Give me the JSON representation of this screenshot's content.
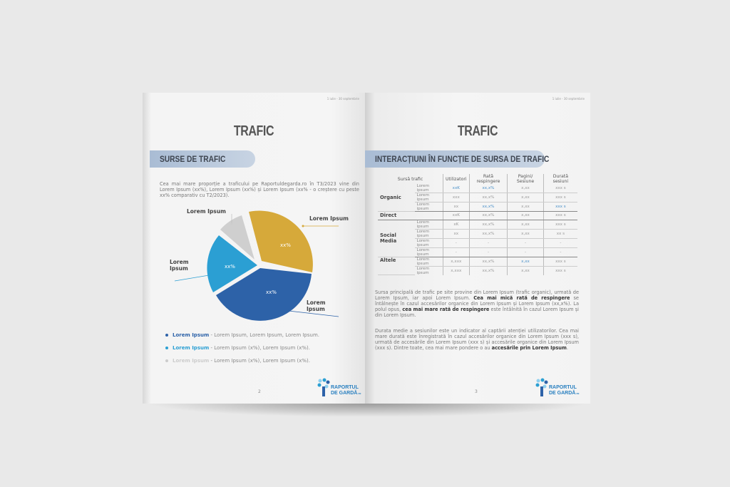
{
  "left_page": {
    "date_range": "1 iulie - 30 septembrie",
    "title": "TRAFIC",
    "section": "SURSE DE TRAFIC",
    "intro": "Cea mai mare proporție a traficului pe Raportuldegarda.ro în T3/2023 vine din Lorem Ipsum (xx%), Lorem Ipsum (xx%) și Lorem Ipsum (xx% - o creștere cu peste xx% comparativ cu T2/2023).",
    "pie": {
      "labels": [
        "Lorem Ipsum",
        "Lorem Ipsum",
        "Lorem Ipsum",
        "Lorem Ipsum"
      ],
      "slice_text": [
        "xx%",
        "xx%",
        "xx%"
      ],
      "colors": {
        "gold": "#d6a93a",
        "dark_blue": "#2d62a8",
        "light_blue": "#2b9fd3",
        "grey": "#cfcfcf"
      }
    },
    "bullets": [
      {
        "bold": "Lorem Ipsum",
        "text": " - Lorem Ipsum, Lorem Ipsum, Lorem Ipsum.",
        "color": "#2d62a8"
      },
      {
        "bold": "Lorem Ipsum",
        "text": " - Lorem Ipsum (x%), Lorem Ipsum (x%).",
        "color": "#2b9fd3"
      },
      {
        "bold": "Lorem Ipsum",
        "text": " - Lorem Ipsum (x%), Lorem Ipsum (x%).",
        "color": "#cccccc"
      }
    ],
    "page_number": "2",
    "logo": {
      "line1": "RAPORTUL",
      "line2": "DE GARDĂ",
      "suffix": ".ro"
    }
  },
  "right_page": {
    "date_range": "1 iulie - 30 septembrie",
    "title": "TRAFIC",
    "section": "INTERACȚIUNI ÎN FUNCȚIE DE SURSA DE TRAFIC",
    "table": {
      "headers": [
        "Sursă trafic",
        "Utilizatori",
        "Rată respingere",
        "Pagini/ Sesiune",
        "Durată sesiuni"
      ],
      "groups": {
        "organic": "Organic",
        "direct": "Direct",
        "social": "Social Media",
        "altele": "Altele"
      },
      "rows": [
        [
          "Lorem ipsum",
          "xxK",
          "xx,x%",
          "x,xx",
          "xxx s"
        ],
        [
          "Lorem ipsum",
          "xxx",
          "xx,x%",
          "x,xx",
          "xxx s"
        ],
        [
          "Lorem ipsum",
          "xx",
          "xx,x%",
          "x,xx",
          "xxx s"
        ],
        [
          "",
          "xxK",
          "xx,x%",
          "x,xx",
          "xxx s"
        ],
        [
          "Lorem ipsum",
          "xK",
          "xx,x%",
          "x,xx",
          "xxx s"
        ],
        [
          "Lorem ipsum",
          "xx",
          "xx,x%",
          "x,xx",
          "xx s"
        ],
        [
          "Lorem ipsum",
          "-",
          "-",
          "-",
          "-"
        ],
        [
          "Lorem ipsum",
          "-",
          "-",
          "-",
          "-"
        ],
        [
          "Lorem ipsum",
          "x,xxx",
          "xx,x%",
          "x,xx",
          "xxx s"
        ],
        [
          "Lorem ipsum",
          "x,xxx",
          "xx,x%",
          "x,xx",
          "xxx s"
        ]
      ]
    },
    "p1": {
      "a": "Sursa principală de trafic pe site provine din Lorem Ipsum (trafic organic), urmată de Lorem Ipsum, iar apoi Lorem Ipsum. ",
      "b1": "Cea mai mică rată de respingere",
      "c": " se întâlnește în cazul accesărilor organice din Lorem Ipsum și Lorem Ipsum (xx,x%). La polul opus, ",
      "b2": "cea mai mare rată de respingere",
      "d": " este întâlnită în cazul Lorem Ipsum și din Lorem Ipsum."
    },
    "p2": {
      "a": "Durata medie a sesiunilor este un indicator al captării atenției utilizatorilor. Cea mai mare durată este înregistrată în cazul accesărilor organice din Lorem Ipsum (xxx s), urmată de accesările din Lorem Ipsum (xxx s) și accesările organice din Lorem Ipsum (xxx s). Dintre toate, cea mai mare pondere o au ",
      "b": "accesările prin Lorem Ipsum",
      "c": "."
    },
    "page_number": "3",
    "logo": {
      "line1": "RAPORTUL",
      "line2": "DE GARDĂ",
      "suffix": ".ro"
    }
  }
}
